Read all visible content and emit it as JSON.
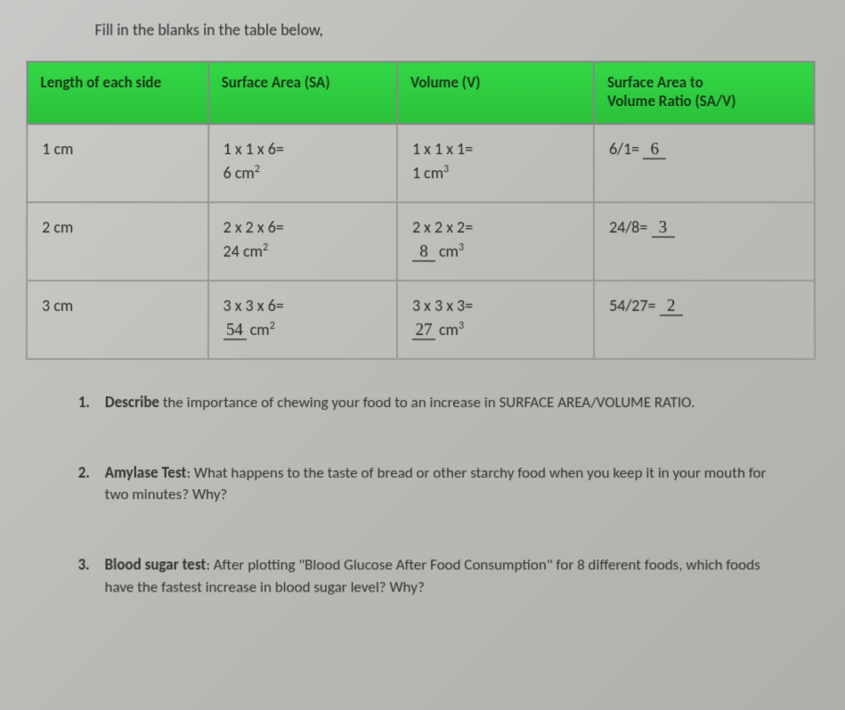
{
  "instruction": "Fill in the blanks in the table below,",
  "table": {
    "header_bg": "#2ecc40",
    "border_color": "#999999",
    "columns": [
      {
        "label": "Length of each side"
      },
      {
        "label": "Surface Area (SA)"
      },
      {
        "label": "Volume (V)"
      },
      {
        "label_line1": "Surface Area to",
        "label_line2": "Volume Ratio (SA/V)"
      }
    ],
    "rows": [
      {
        "length": "1 cm",
        "sa_expr": "1 x 1 x 6=",
        "sa_val": "6 cm",
        "sa_exp": "2",
        "sa_blank": "",
        "v_expr": "1 x 1 x 1=",
        "v_val": "1 cm",
        "v_exp": "3",
        "v_blank": "",
        "ratio_expr": "6/1=",
        "ratio_blank": "6"
      },
      {
        "length": "2 cm",
        "sa_expr": "2 x 2 x 6=",
        "sa_val": "24 cm",
        "sa_exp": "2",
        "sa_blank": "",
        "v_expr": "2 x 2 x 2=",
        "v_val": " cm",
        "v_exp": "3",
        "v_blank": "8",
        "ratio_expr": "24/8=",
        "ratio_blank": "3"
      },
      {
        "length": "3 cm",
        "sa_expr": "3 x 3 x 6=",
        "sa_val": " cm",
        "sa_exp": "2",
        "sa_blank": "54",
        "v_expr": "3 x 3 x 3=",
        "v_val": " cm",
        "v_exp": "3",
        "v_blank": "27",
        "ratio_expr": "54/27=",
        "ratio_blank": "2"
      }
    ]
  },
  "questions": [
    {
      "num": "1.",
      "bold": "Describe",
      "rest": " the importance of chewing your food to an increase in SURFACE AREA/VOLUME RATIO."
    },
    {
      "num": "2.",
      "bold": "Amylase Test",
      "rest": ": What happens to the taste of bread or other starchy food when you keep it in your mouth for two minutes? Why?"
    },
    {
      "num": "3.",
      "bold": "Blood sugar test",
      "rest": ": After plotting \"Blood Glucose After Food Consumption\" for 8 different foods, which foods have the fastest increase in blood sugar level? Why?"
    }
  ]
}
